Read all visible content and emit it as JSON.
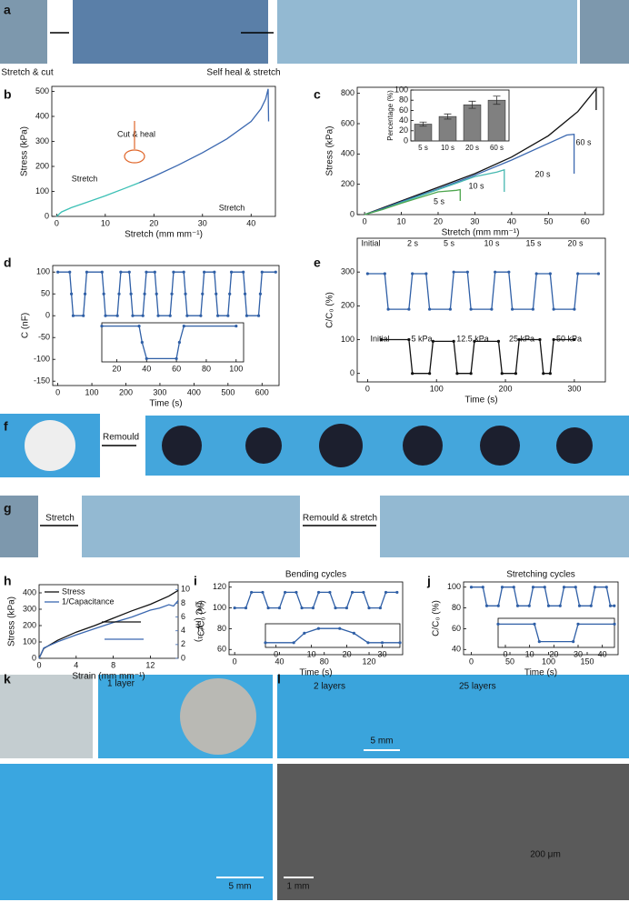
{
  "panel_labels": [
    "a",
    "b",
    "c",
    "d",
    "e",
    "f",
    "g",
    "h",
    "i",
    "j",
    "k",
    "l"
  ],
  "photo_texts": [
    "Stretch & cut",
    "Self heal & stretch",
    "Remould",
    "Stretch",
    "Remould & stretch",
    "1 layer",
    "2 layers",
    "25 layers",
    "5 mm",
    "5 mm",
    "1 mm",
    "200 μm"
  ],
  "chart_data": [
    {
      "type": "line",
      "xlabel": "Stretch (mm mm⁻¹)",
      "ylabel": "Stress (kPa)",
      "xlim": [
        -1,
        45
      ],
      "ylim": [
        0,
        520
      ],
      "xticks": [
        0,
        10,
        20,
        30,
        40
      ],
      "yticks": [
        0,
        100,
        200,
        300,
        400,
        500
      ],
      "annotations": [
        "Cut & heal",
        "Stretch",
        "Stretch"
      ],
      "series": [
        {
          "color": "#3cc0b5",
          "x": [
            0,
            1,
            3,
            6,
            10,
            14,
            17
          ],
          "values": [
            0,
            18,
            35,
            55,
            82,
            112,
            135
          ]
        },
        {
          "color": "#3b68b0",
          "x": [
            17,
            20,
            25,
            30,
            35,
            40,
            42,
            43,
            43.5,
            43.6
          ],
          "values": [
            135,
            160,
            205,
            255,
            310,
            380,
            430,
            470,
            510,
            380
          ]
        }
      ]
    },
    {
      "type": "line",
      "xlabel": "Stretch (mm mm⁻¹)",
      "ylabel": "Stress (kPa)",
      "xlim": [
        -2,
        65
      ],
      "ylim": [
        0,
        840
      ],
      "xticks": [
        0,
        10,
        20,
        30,
        40,
        50,
        60
      ],
      "yticks": [
        0,
        200,
        400,
        600,
        800
      ],
      "annotations": [
        "60 s",
        "20 s",
        "10 s",
        "5 s"
      ],
      "series": [
        {
          "color": "#111111",
          "x": [
            0,
            5,
            10,
            20,
            30,
            40,
            50,
            58,
            62,
            63,
            63
          ],
          "values": [
            0,
            45,
            90,
            180,
            270,
            380,
            520,
            680,
            800,
            830,
            690
          ]
        },
        {
          "color": "#3b68b0",
          "x": [
            0,
            5,
            10,
            20,
            30,
            40,
            50,
            55,
            57,
            57
          ],
          "values": [
            0,
            40,
            85,
            170,
            260,
            360,
            470,
            525,
            530,
            270
          ]
        },
        {
          "color": "#46b8b0",
          "x": [
            0,
            5,
            10,
            20,
            30,
            36,
            38,
            38
          ],
          "values": [
            0,
            35,
            80,
            165,
            250,
            280,
            295,
            150
          ]
        },
        {
          "color": "#4ea64e",
          "x": [
            0,
            5,
            10,
            20,
            25,
            26,
            26
          ],
          "values": [
            0,
            35,
            75,
            150,
            160,
            165,
            90
          ]
        }
      ]
    },
    {
      "type": "bar",
      "ylabel": "Percentage (%)",
      "ylim": [
        0,
        100
      ],
      "yticks": [
        0,
        20,
        40,
        60,
        80,
        100
      ],
      "color": "#808080",
      "categories": [
        "5 s",
        "10 s",
        "20 s",
        "60 s"
      ],
      "values": [
        33,
        48,
        71,
        80
      ],
      "errors": [
        4,
        5,
        7,
        8
      ]
    },
    {
      "type": "line",
      "xlabel": "Time (s)",
      "ylabel": "C (nF)",
      "xlim": [
        -15,
        650
      ],
      "ylim": [
        -160,
        115
      ],
      "xticks": [
        0,
        100,
        200,
        300,
        400,
        500,
        600
      ],
      "yticks": [
        -150,
        -100,
        -50,
        0,
        50,
        100
      ],
      "markers": true,
      "series": [
        {
          "color": "#2f5fa6",
          "x": [
            0,
            35,
            40,
            45,
            75,
            80,
            85,
            130,
            135,
            140,
            175,
            180,
            185,
            210,
            215,
            220,
            250,
            255,
            260,
            285,
            290,
            295,
            330,
            335,
            340,
            370,
            375,
            380,
            420,
            425,
            430,
            460,
            465,
            470,
            500,
            505,
            510,
            545,
            550,
            555,
            590,
            595,
            600,
            640
          ],
          "values": [
            100,
            100,
            50,
            0,
            0,
            50,
            100,
            100,
            50,
            0,
            0,
            50,
            100,
            100,
            50,
            0,
            0,
            50,
            100,
            100,
            50,
            0,
            0,
            50,
            100,
            100,
            50,
            0,
            0,
            50,
            100,
            100,
            50,
            0,
            0,
            50,
            100,
            100,
            50,
            0,
            0,
            50,
            100,
            100
          ]
        }
      ]
    },
    {
      "type": "line",
      "xlim": [
        10,
        105
      ],
      "ylim": [
        -10,
        110
      ],
      "xticks": [
        20,
        40,
        60,
        80,
        100
      ],
      "markers": true,
      "series": [
        {
          "color": "#2f5fa6",
          "x": [
            10,
            35,
            37,
            40,
            60,
            62,
            65,
            100
          ],
          "values": [
            100,
            100,
            50,
            0,
            0,
            50,
            100,
            100
          ]
        }
      ]
    },
    {
      "type": "line",
      "xlabel": "Time (s)",
      "ylabel": "C/C₀ (%)",
      "xlim": [
        -15,
        345
      ],
      "ylim": [
        -25,
        400
      ],
      "xticks": [
        0,
        100,
        200,
        300
      ],
      "yticks": [
        0,
        100,
        200,
        300
      ],
      "markers": true,
      "annotations": [
        "Initial",
        "2 s",
        "5 s",
        "10 s",
        "15 s",
        "20 s",
        "Initial",
        "5 kPa",
        "12.5 kPa",
        "25 kPa",
        "50 kPa"
      ],
      "series": [
        {
          "color": "#2f5fa6",
          "x": [
            0,
            25,
            30,
            60,
            65,
            85,
            90,
            120,
            125,
            145,
            150,
            180,
            185,
            205,
            210,
            240,
            245,
            265,
            270,
            300,
            305,
            335
          ],
          "values": [
            295,
            295,
            190,
            190,
            295,
            295,
            190,
            190,
            300,
            300,
            190,
            190,
            300,
            300,
            190,
            190,
            295,
            295,
            190,
            190,
            295,
            295
          ]
        },
        {
          "color": "#111111",
          "x": [
            20,
            60,
            65,
            90,
            95,
            125,
            130,
            150,
            155,
            190,
            195,
            215,
            220,
            250,
            255,
            265,
            270,
            300
          ],
          "values": [
            100,
            100,
            0,
            0,
            95,
            95,
            0,
            0,
            95,
            95,
            0,
            0,
            100,
            100,
            0,
            0,
            100,
            100
          ]
        }
      ]
    },
    {
      "type": "line",
      "xlabel": "Strain (mm mm⁻¹)",
      "ylabel": "Stress (kPa)",
      "y2label": "1/C (nF⁻¹)",
      "xlim": [
        0,
        15
      ],
      "ylim": [
        0,
        450
      ],
      "y2lim": [
        0,
        10.7
      ],
      "xticks": [
        0,
        4,
        8,
        12
      ],
      "yticks": [
        0,
        100,
        200,
        300,
        400
      ],
      "y2ticks": [
        0,
        2,
        4,
        6,
        8,
        10
      ],
      "series": [
        {
          "name": "Stress",
          "color": "#111111",
          "x": [
            0,
            0.5,
            2,
            4,
            6,
            8,
            10,
            12,
            14,
            15
          ],
          "values": [
            0,
            60,
            110,
            160,
            200,
            245,
            290,
            330,
            380,
            415
          ]
        },
        {
          "name": "1/Capacitance",
          "color": "#3b68b0",
          "axis": "y2",
          "x": [
            0,
            0.5,
            2,
            4,
            6,
            8,
            10,
            12,
            13,
            14,
            14.5,
            15
          ],
          "values": [
            0,
            1.5,
            2.4,
            3.4,
            4.3,
            5.2,
            6.0,
            7.0,
            7.3,
            7.8,
            7.6,
            8.4
          ]
        }
      ]
    },
    {
      "type": "line",
      "title": "Bending cycles",
      "xlabel": "Time (s)",
      "ylabel": "C/C₀ (%)",
      "xlim": [
        -5,
        150
      ],
      "ylim": [
        55,
        125
      ],
      "xticks": [
        0,
        40,
        80,
        120
      ],
      "yticks": [
        60,
        80,
        100,
        120
      ],
      "markers": true,
      "series": [
        {
          "color": "#2f5fa6",
          "x": [
            0,
            10,
            15,
            25,
            30,
            40,
            45,
            55,
            60,
            70,
            75,
            85,
            90,
            100,
            105,
            115,
            120,
            130,
            135,
            145
          ],
          "values": [
            100,
            100,
            115,
            115,
            100,
            100,
            115,
            115,
            100,
            100,
            115,
            115,
            100,
            100,
            115,
            115,
            100,
            100,
            115,
            115
          ]
        }
      ]
    },
    {
      "type": "line",
      "xlim": [
        -3,
        35
      ],
      "ylim": [
        0,
        100
      ],
      "xticks": [
        0,
        10,
        20,
        30
      ],
      "markers": true,
      "series": [
        {
          "color": "#2f5fa6",
          "x": [
            -3,
            5,
            8,
            12,
            18,
            22,
            26,
            30,
            35
          ],
          "values": [
            20,
            20,
            60,
            80,
            80,
            60,
            20,
            20,
            20
          ]
        }
      ]
    },
    {
      "type": "line",
      "title": "Stretching cycles",
      "xlabel": "Time (s)",
      "ylabel": "C/C₀ (%)",
      "xlim": [
        -10,
        190
      ],
      "ylim": [
        35,
        105
      ],
      "xticks": [
        0,
        50,
        100,
        150
      ],
      "yticks": [
        40,
        60,
        80,
        100
      ],
      "markers": true,
      "series": [
        {
          "color": "#2f5fa6",
          "x": [
            0,
            15,
            20,
            35,
            40,
            55,
            60,
            75,
            80,
            95,
            100,
            115,
            120,
            135,
            140,
            155,
            160,
            175,
            180,
            185
          ],
          "values": [
            100,
            100,
            82,
            82,
            100,
            100,
            82,
            82,
            100,
            100,
            82,
            82,
            100,
            100,
            82,
            82,
            100,
            100,
            82,
            82
          ]
        }
      ]
    },
    {
      "type": "line",
      "xlim": [
        -3,
        45
      ],
      "ylim": [
        0,
        100
      ],
      "xticks": [
        0,
        10,
        20,
        30,
        40
      ],
      "markers": true,
      "series": [
        {
          "color": "#2f5fa6",
          "x": [
            -3,
            12,
            14,
            28,
            30,
            45
          ],
          "values": [
            80,
            80,
            20,
            20,
            80,
            80
          ]
        }
      ]
    }
  ]
}
